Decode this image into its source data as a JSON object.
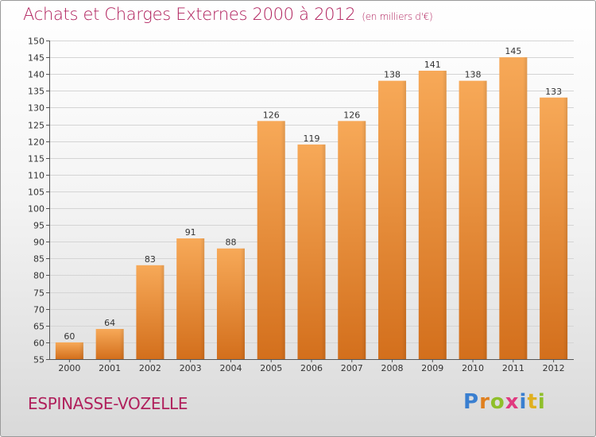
{
  "header": {
    "title": "Achats et Charges Externes 2000 à 2012",
    "subtitle": "(en milliers d'€)"
  },
  "footer": {
    "commune": "ESPINASSE-VOZELLE",
    "logo_text": "Proxiti"
  },
  "colors": {
    "title": "#b0205c",
    "bar_light": "#f7a958",
    "bar_dark": "#d36f1c",
    "logo_letters": [
      "#3a7fd0",
      "#e0801f",
      "#8fbf2a",
      "#e03a7f",
      "#3a7fd0",
      "#e0b01f",
      "#8fbf2a"
    ]
  },
  "chart_data": {
    "type": "bar",
    "title": "Achats et Charges Externes 2000 à 2012",
    "subtitle": "(en milliers d'€)",
    "categories": [
      "2000",
      "2001",
      "2002",
      "2003",
      "2004",
      "2005",
      "2006",
      "2007",
      "2008",
      "2009",
      "2010",
      "2011",
      "2012"
    ],
    "values": [
      60,
      64,
      83,
      91,
      88,
      126,
      119,
      126,
      138,
      141,
      138,
      145,
      133
    ],
    "ylim": [
      55,
      150
    ],
    "yticks": [
      55,
      60,
      65,
      70,
      75,
      80,
      85,
      90,
      95,
      100,
      105,
      110,
      115,
      120,
      125,
      130,
      135,
      140,
      145,
      150
    ],
    "grid": true,
    "data_labels": true
  }
}
